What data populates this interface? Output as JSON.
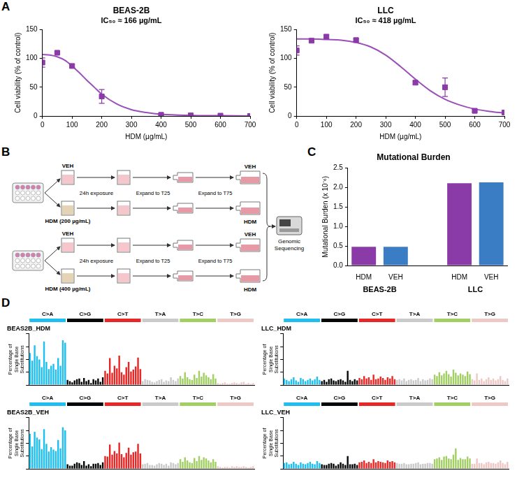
{
  "chart_data": [
    {
      "panel": "A",
      "type": "scatter",
      "title": "BEAS-2B",
      "subtitle": "IC₅₀ ≈ 166 µg/mL",
      "x_label": "HDM (µg/mL)",
      "y_label": "Cell viability (% of control)",
      "xlim": [
        0,
        700
      ],
      "xticks": [
        0,
        100,
        200,
        300,
        400,
        500,
        600,
        700
      ],
      "ylim": [
        0,
        150
      ],
      "yticks": [
        0,
        50,
        100,
        150
      ],
      "grid": false,
      "series": [
        {
          "type": "scatter",
          "marker": "square",
          "color": "#8B3BA8",
          "x": [
            0,
            50,
            100,
            200,
            400,
            500,
            600,
            700
          ],
          "values": [
            93,
            110,
            87,
            34,
            2,
            1,
            0.5,
            0
          ],
          "errors": [
            8,
            2,
            3,
            12,
            1,
            1,
            0,
            0
          ]
        },
        {
          "type": "line",
          "line_style": "solid",
          "color": "#9B4FB8",
          "x": [
            0,
            25,
            50,
            75,
            100,
            125,
            150,
            175,
            200,
            250,
            300,
            350,
            400,
            500,
            600,
            700
          ],
          "values": [
            107,
            106,
            103,
            97,
            87,
            75,
            62,
            50,
            38,
            21,
            11,
            6,
            3,
            1,
            0.5,
            0
          ]
        }
      ]
    },
    {
      "type": "scatter",
      "title": "LLC",
      "subtitle": "IC₅₀ ≈ 418 µg/mL",
      "x_label": "HDM (µg/mL)",
      "y_label": "Cell viability (% of control)",
      "xlim": [
        0,
        700
      ],
      "xticks": [
        0,
        100,
        200,
        300,
        400,
        500,
        600,
        700
      ],
      "ylim": [
        0,
        150
      ],
      "yticks": [
        0,
        50,
        100,
        150
      ],
      "grid": false,
      "series": [
        {
          "type": "scatter",
          "marker": "square",
          "color": "#8B3BA8",
          "x": [
            0,
            50,
            100,
            200,
            400,
            500,
            600,
            700
          ],
          "values": [
            114,
            131,
            138,
            132,
            58,
            50,
            9,
            6
          ],
          "errors": [
            8,
            2,
            3,
            2,
            3,
            16,
            2,
            1
          ]
        },
        {
          "type": "line",
          "line_style": "solid",
          "color": "#9B4FB8",
          "x": [
            0,
            50,
            100,
            150,
            200,
            250,
            300,
            350,
            400,
            450,
            500,
            550,
            600,
            650,
            700
          ],
          "values": [
            134,
            134,
            133,
            132,
            128,
            120,
            106,
            86,
            64,
            44,
            29,
            19,
            12,
            8,
            5
          ]
        }
      ]
    },
    {
      "panel": "C",
      "type": "bar",
      "title": "Mutational Burden",
      "y_label": "Mutational Burden (x 10⁻⁶)",
      "categories": [
        "HDM",
        "VEH",
        null,
        "HDM",
        "VEH"
      ],
      "groups": [
        "BEAS-2B",
        "LLC"
      ],
      "values": [
        0.48,
        0.48,
        null,
        2.11,
        2.13
      ],
      "colors": [
        "#8B3BA8",
        "#3B7DC4",
        null,
        "#8B3BA8",
        "#3B7DC4"
      ],
      "ylim": [
        0,
        2.5
      ],
      "yticks": [
        {
          "value": 0,
          "label": "0.0"
        },
        0.5,
        {
          "value": 1,
          "label": "1.0"
        },
        1.5,
        {
          "value": 2,
          "label": "2.0"
        },
        2.5
      ],
      "grid": false
    },
    {
      "panel": "D",
      "type": "bar",
      "title": "BEAS2B_HDM",
      "y_label": "Percentage of Single Base Substitutions",
      "ylim": [
        0,
        8
      ],
      "yticks": [
        0,
        2,
        4,
        6,
        8
      ],
      "tick_labels": false,
      "grid": false,
      "series": [
        {
          "name": "C>A",
          "color": "#1EBFF0",
          "values": [
            5.0,
            3.8,
            6.2,
            4.5,
            4.0,
            2.8,
            6.8,
            3.6,
            2.5,
            3.0,
            3.3,
            2.4,
            4.2,
            3.0,
            7.0,
            6.6
          ]
        },
        {
          "name": "C>G",
          "color": "#050708",
          "values": [
            0.8,
            0.6,
            0.4,
            0.7,
            0.9,
            1.0,
            0.5,
            1.1,
            0.6,
            0.8,
            0.3,
            0.9,
            0.7,
            1.0,
            0.5,
            1.2
          ]
        },
        {
          "name": "C>T",
          "color": "#E62725",
          "values": [
            2.2,
            1.8,
            4.2,
            1.9,
            3.0,
            2.6,
            4.6,
            2.0,
            1.6,
            2.8,
            3.6,
            2.1,
            2.4,
            2.9,
            4.3,
            2.5
          ]
        },
        {
          "name": "T>A",
          "color": "#CBCACB",
          "values": [
            0.6,
            0.9,
            0.8,
            0.7,
            0.5,
            0.4,
            0.6,
            0.8,
            0.9,
            0.5,
            0.7,
            0.6,
            1.2,
            0.8,
            0.6,
            1.0
          ]
        },
        {
          "name": "T>C",
          "color": "#A1CF64",
          "values": [
            1.4,
            1.0,
            2.0,
            1.2,
            0.9,
            0.8,
            1.6,
            1.1,
            2.2,
            1.3,
            1.9,
            1.5,
            1.2,
            0.9,
            1.7,
            1.0
          ]
        },
        {
          "name": "T>G",
          "color": "#EDC8C5",
          "values": [
            0.3,
            0.2,
            0.3,
            0.4,
            0.2,
            0.2,
            0.3,
            0.4,
            0.3,
            0.2,
            0.4,
            0.5,
            0.2,
            0.3,
            0.2,
            0.3
          ]
        }
      ]
    },
    {
      "type": "bar",
      "title": "LLC_HDM",
      "y_label": "Percentage of Single Base Substitutions",
      "ylim": [
        0,
        8
      ],
      "yticks": [
        0,
        2,
        4,
        6,
        8
      ],
      "tick_labels": false,
      "grid": false,
      "series": [
        {
          "name": "C>A",
          "color": "#1EBFF0",
          "values": [
            1.0,
            0.8,
            0.6,
            0.9,
            1.2,
            0.7,
            0.5,
            1.1,
            0.9,
            0.6,
            0.8,
            1.0,
            0.7,
            0.9,
            1.3,
            0.8
          ]
        },
        {
          "name": "C>G",
          "color": "#050708",
          "values": [
            0.6,
            0.8,
            0.5,
            0.9,
            1.0,
            0.7,
            0.6,
            0.8,
            0.9,
            0.7,
            0.5,
            2.2,
            0.8,
            0.6,
            0.9,
            0.7
          ]
        },
        {
          "name": "C>T",
          "color": "#E62725",
          "values": [
            1.1,
            0.9,
            1.4,
            1.0,
            1.2,
            0.8,
            1.6,
            0.9,
            1.0,
            1.3,
            1.1,
            0.8,
            1.2,
            1.0,
            1.4,
            0.9
          ]
        },
        {
          "name": "T>A",
          "color": "#CBCACB",
          "values": [
            0.8,
            0.9,
            0.7,
            1.0,
            0.6,
            0.8,
            0.9,
            0.7,
            0.8,
            1.1,
            0.6,
            0.9,
            0.7,
            0.8,
            1.0,
            0.9
          ]
        },
        {
          "name": "T>C",
          "color": "#A1CF64",
          "values": [
            1.6,
            1.4,
            2.0,
            1.5,
            1.8,
            2.2,
            1.7,
            1.3,
            2.4,
            1.9,
            1.5,
            1.8,
            1.6,
            1.4,
            2.1,
            1.7
          ]
        },
        {
          "name": "T>G",
          "color": "#EDC8C5",
          "values": [
            0.9,
            0.7,
            1.8,
            0.8,
            1.0,
            0.6,
            0.9,
            1.2,
            0.8,
            1.0,
            0.7,
            0.9,
            1.4,
            0.8,
            0.6,
            1.0
          ]
        }
      ]
    },
    {
      "type": "bar",
      "title": "BEAS2B_VEH",
      "y_label": "Percentage of Single Base Substitutions",
      "ylim": [
        0,
        8
      ],
      "yticks": [
        0,
        2,
        4,
        6,
        8
      ],
      "tick_labels": false,
      "grid": false,
      "series": [
        {
          "name": "C>A",
          "color": "#1EBFF0",
          "values": [
            5.5,
            3.5,
            5.8,
            4.9,
            4.6,
            3.1,
            6.2,
            3.9,
            2.7,
            3.4,
            3.0,
            2.8,
            4.5,
            3.2,
            6.5,
            6.0
          ]
        },
        {
          "name": "C>G",
          "color": "#050708",
          "values": [
            0.7,
            0.5,
            0.5,
            0.8,
            1.0,
            0.9,
            0.6,
            1.2,
            0.5,
            0.7,
            0.4,
            0.8,
            0.8,
            0.9,
            0.6,
            1.0
          ]
        },
        {
          "name": "C>T",
          "color": "#E62725",
          "values": [
            2.0,
            1.9,
            3.8,
            2.2,
            2.8,
            2.4,
            4.1,
            2.3,
            1.8,
            2.5,
            3.3,
            2.2,
            2.6,
            2.7,
            3.9,
            2.4
          ]
        },
        {
          "name": "T>A",
          "color": "#CBCACB",
          "values": [
            0.7,
            0.8,
            0.9,
            0.6,
            0.6,
            0.5,
            0.7,
            0.9,
            0.8,
            0.6,
            0.8,
            0.5,
            1.0,
            0.9,
            0.7,
            0.9
          ]
        },
        {
          "name": "T>C",
          "color": "#A1CF64",
          "values": [
            1.5,
            1.1,
            1.8,
            1.3,
            1.0,
            0.9,
            1.7,
            1.2,
            2.0,
            1.4,
            1.8,
            1.6,
            1.3,
            1.0,
            1.5,
            1.1
          ]
        },
        {
          "name": "T>G",
          "color": "#EDC8C5",
          "values": [
            0.4,
            0.3,
            0.2,
            0.3,
            0.3,
            0.2,
            0.4,
            0.3,
            0.4,
            0.3,
            0.3,
            0.4,
            0.3,
            0.2,
            0.3,
            0.4
          ]
        }
      ]
    },
    {
      "type": "bar",
      "title": "LLC_VEH",
      "y_label": "Percentage of Single Base Substitutions",
      "ylim": [
        0,
        8
      ],
      "yticks": [
        0,
        2,
        4,
        6,
        8
      ],
      "tick_labels": false,
      "grid": false,
      "series": [
        {
          "name": "C>A",
          "color": "#1EBFF0",
          "values": [
            0.9,
            1.0,
            0.7,
            0.8,
            1.1,
            0.8,
            0.6,
            1.0,
            0.8,
            0.7,
            0.9,
            1.1,
            0.8,
            0.7,
            1.2,
            0.9
          ]
        },
        {
          "name": "C>G",
          "color": "#050708",
          "values": [
            0.7,
            0.6,
            0.6,
            0.8,
            0.9,
            0.8,
            0.5,
            0.7,
            1.0,
            0.8,
            0.6,
            2.0,
            0.7,
            0.7,
            0.8,
            0.6
          ]
        },
        {
          "name": "C>T",
          "color": "#E62725",
          "values": [
            1.0,
            1.1,
            1.3,
            0.9,
            1.1,
            0.9,
            1.5,
            1.0,
            1.2,
            1.1,
            1.0,
            0.9,
            1.3,
            1.1,
            1.2,
            1.0
          ]
        },
        {
          "name": "T>A",
          "color": "#CBCACB",
          "values": [
            0.9,
            0.8,
            0.8,
            0.9,
            0.7,
            0.7,
            0.8,
            0.8,
            0.9,
            1.0,
            0.7,
            0.8,
            0.8,
            0.9,
            0.9,
            0.8
          ]
        },
        {
          "name": "T>C",
          "color": "#A1CF64",
          "values": [
            1.5,
            1.6,
            1.8,
            1.4,
            1.9,
            2.0,
            1.6,
            1.5,
            2.2,
            3.2,
            1.4,
            1.7,
            1.5,
            1.5,
            1.9,
            1.6
          ]
        },
        {
          "name": "T>G",
          "color": "#EDC8C5",
          "values": [
            0.8,
            0.8,
            1.6,
            0.9,
            0.9,
            0.7,
            1.0,
            1.1,
            0.9,
            0.9,
            0.8,
            1.0,
            1.3,
            0.9,
            0.7,
            1.1
          ]
        }
      ]
    }
  ],
  "diagram": {
    "panel": "B",
    "rows": [
      {
        "top_label": "VEH",
        "bottom_label": "HDM (200 µg/mL)",
        "exposure": "24h exposure",
        "expand_1": "Expand to T25",
        "expand_2": "Expand to T75",
        "end_top": "VEH",
        "end_bottom": "HDM"
      },
      {
        "top_label": "VEH",
        "bottom_label": "HDM (400 µg/mL)",
        "exposure": "24h exposure",
        "expand_1": "Expand to T25",
        "expand_2": "Expand to T75",
        "end_top": "VEH",
        "end_bottom": "HDM"
      }
    ],
    "final": "Genomic Sequencing"
  }
}
